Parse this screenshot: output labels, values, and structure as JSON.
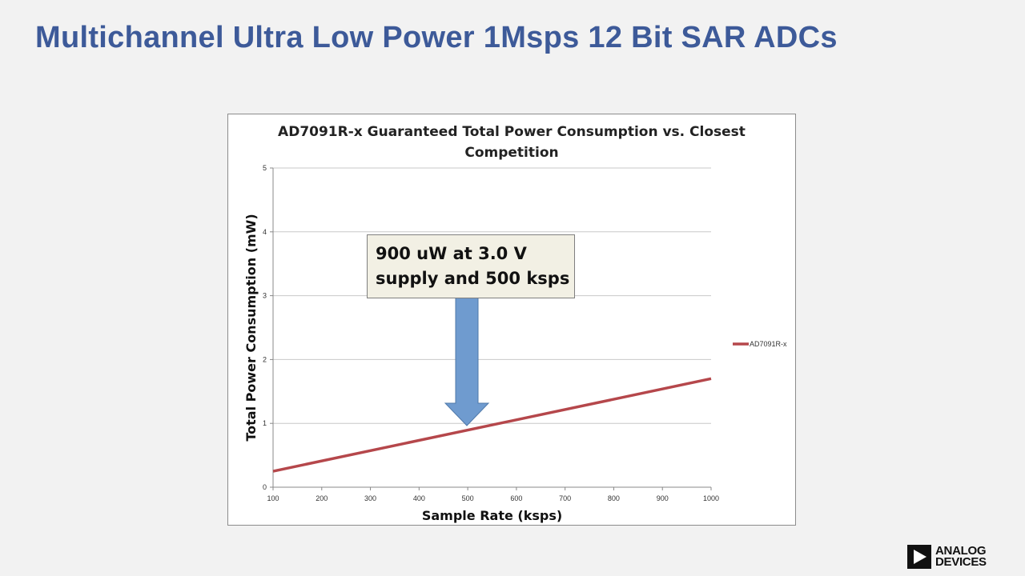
{
  "slide": {
    "title": "Multichannel Ultra Low Power 1Msps 12 Bit SAR ADCs"
  },
  "chart_data": {
    "type": "line",
    "title_lines": [
      "AD7091R-x Guaranteed Total Power Consumption vs. Closest",
      "Competition"
    ],
    "xlabel": "Sample Rate (ksps)",
    "ylabel": "Total Power Consumption (mW)",
    "xlim": [
      100,
      1000
    ],
    "ylim": [
      0,
      5
    ],
    "x_ticks": [
      "100",
      "200",
      "300",
      "400",
      "500",
      "600",
      "700",
      "800",
      "900",
      "1000"
    ],
    "y_ticks": [
      "0",
      "1",
      "2",
      "3",
      "4",
      "5"
    ],
    "grid": true,
    "legend_position": "right",
    "series": [
      {
        "name": "AD7091R-x",
        "color": "#b5474b",
        "x": [
          100,
          1000
        ],
        "y": [
          0.25,
          1.7
        ]
      }
    ],
    "annotation": {
      "lines": [
        "900 uW at 3.0 V",
        "supply and 500 ksps"
      ],
      "arrow_color": "#6f9bcf"
    }
  },
  "logo": {
    "line1": "ANALOG",
    "line2": "DEVICES"
  }
}
